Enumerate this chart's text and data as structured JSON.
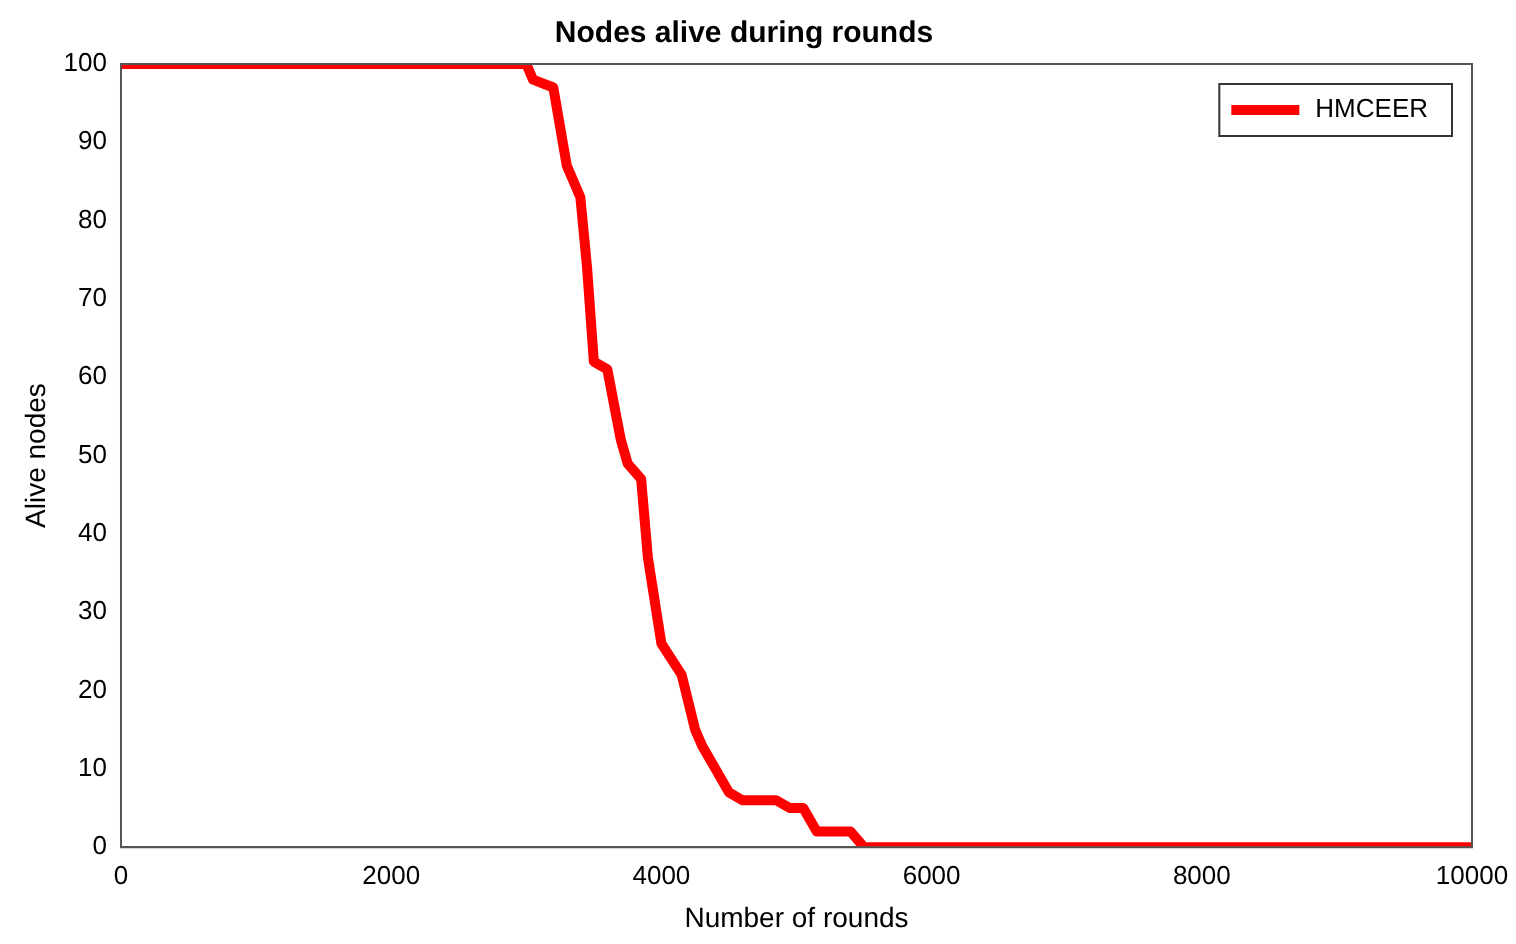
{
  "chart_data": {
    "type": "line",
    "title": "Nodes alive during rounds",
    "xlabel": "Number of rounds",
    "ylabel": "Alive nodes",
    "xlim": [
      0,
      10000
    ],
    "xticks": [
      0,
      2000,
      4000,
      6000,
      8000,
      10000
    ],
    "ylim": [
      0,
      100
    ],
    "yticks": [
      0,
      10,
      20,
      30,
      40,
      50,
      60,
      70,
      80,
      90,
      100
    ],
    "grid": false,
    "legend": "top right",
    "marker": "none",
    "line_style": "solid",
    "series": [
      {
        "name": "HMCEER",
        "color": "#ff0000",
        "x": [
          0,
          3000,
          3050,
          3200,
          3300,
          3400,
          3450,
          3500,
          3600,
          3700,
          3750,
          3850,
          3900,
          4000,
          4150,
          4250,
          4300,
          4400,
          4500,
          4600,
          4850,
          4950,
          5050,
          5150,
          5400,
          5500,
          10000
        ],
        "values": [
          100,
          100,
          98,
          97,
          87,
          83,
          74,
          62,
          61,
          52,
          49,
          47,
          37,
          26,
          22,
          15,
          13,
          10,
          7,
          6,
          6,
          5,
          5,
          2,
          2,
          0,
          0
        ]
      }
    ]
  }
}
